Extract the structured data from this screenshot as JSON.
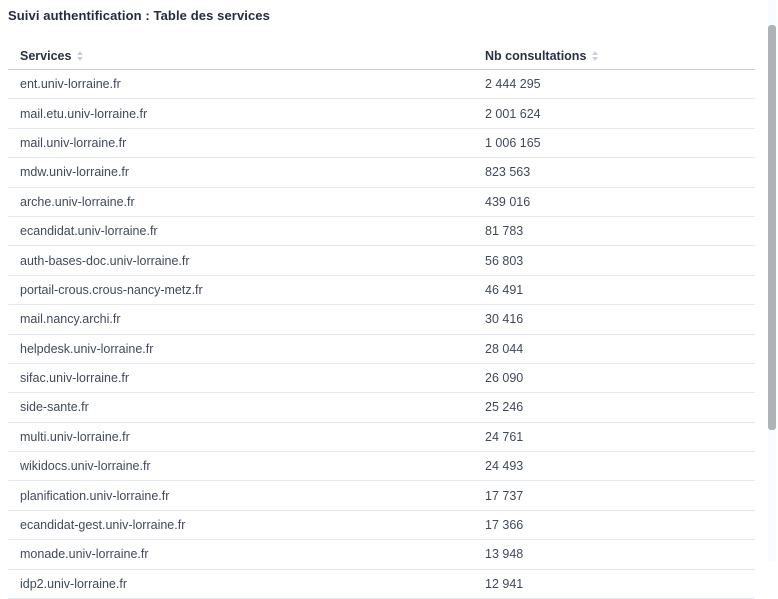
{
  "page": {
    "title": "Suivi authentification : Table des services"
  },
  "colors": {
    "title_text": "#252c3c",
    "header_text": "#2a3243",
    "body_text": "#414a5b",
    "row_divider": "#e5e8ee",
    "header_divider": "#c9cfd9",
    "sort_icon": "#c9d0dd",
    "scrollbar_thumb": "#aeb2b9"
  },
  "table": {
    "columns": [
      {
        "label": "Services"
      },
      {
        "label": "Nb consultations"
      }
    ],
    "rows": [
      {
        "service": "ent.univ-lorraine.fr",
        "consultations": "2 444 295"
      },
      {
        "service": "mail.etu.univ-lorraine.fr",
        "consultations": "2 001 624"
      },
      {
        "service": "mail.univ-lorraine.fr",
        "consultations": "1 006 165"
      },
      {
        "service": "mdw.univ-lorraine.fr",
        "consultations": "823 563"
      },
      {
        "service": "arche.univ-lorraine.fr",
        "consultations": "439 016"
      },
      {
        "service": "ecandidat.univ-lorraine.fr",
        "consultations": "81 783"
      },
      {
        "service": "auth-bases-doc.univ-lorraine.fr",
        "consultations": "56 803"
      },
      {
        "service": "portail-crous.crous-nancy-metz.fr",
        "consultations": "46 491"
      },
      {
        "service": "mail.nancy.archi.fr",
        "consultations": "30 416"
      },
      {
        "service": "helpdesk.univ-lorraine.fr",
        "consultations": "28 044"
      },
      {
        "service": "sifac.univ-lorraine.fr",
        "consultations": "26 090"
      },
      {
        "service": "side-sante.fr",
        "consultations": "25 246"
      },
      {
        "service": "multi.univ-lorraine.fr",
        "consultations": "24 761"
      },
      {
        "service": "wikidocs.univ-lorraine.fr",
        "consultations": "24 493"
      },
      {
        "service": "planification.univ-lorraine.fr",
        "consultations": "17 737"
      },
      {
        "service": "ecandidat-gest.univ-lorraine.fr",
        "consultations": "17 366"
      },
      {
        "service": "monade.univ-lorraine.fr",
        "consultations": "13 948"
      },
      {
        "service": "idp2.univ-lorraine.fr",
        "consultations": "12 941"
      }
    ]
  }
}
